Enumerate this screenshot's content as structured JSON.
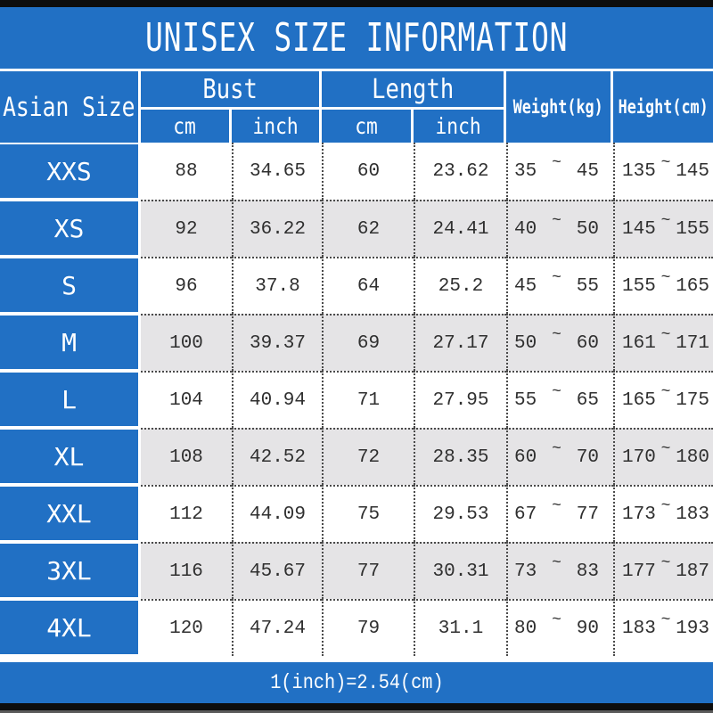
{
  "title": "UNISEX SIZE INFORMATION",
  "header": {
    "size_column": "Asian Size",
    "bust_group": "Bust",
    "length_group": "Length",
    "bust_units": [
      "cm",
      "inch"
    ],
    "length_units": [
      "cm",
      "inch"
    ],
    "weight_column": "Weight(kg)",
    "height_column": "Height(cm)"
  },
  "range_separator": "~",
  "footer_note": "1(inch)=2.54(cm)",
  "colors": {
    "table_blue": "#2170C4",
    "row_alt_gray": "#E5E4E6",
    "edge_bar_black": "#0D0D0D",
    "dotted_line": "#4A4A4A",
    "data_text": "#2F2F2F"
  },
  "chart_data": {
    "type": "table",
    "title": "UNISEX SIZE INFORMATION",
    "columns": [
      "Asian Size",
      "Bust cm",
      "Bust inch",
      "Length cm",
      "Length inch",
      "Weight(kg)",
      "Height(cm)"
    ],
    "rows": [
      [
        "XXS",
        "88",
        "34.65",
        "60",
        "23.62",
        [
          "35",
          "45"
        ],
        [
          "135",
          "145"
        ]
      ],
      [
        "XS",
        "92",
        "36.22",
        "62",
        "24.41",
        [
          "40",
          "50"
        ],
        [
          "145",
          "155"
        ]
      ],
      [
        "S",
        "96",
        "37.8",
        "64",
        "25.2",
        [
          "45",
          "55"
        ],
        [
          "155",
          "165"
        ]
      ],
      [
        "M",
        "100",
        "39.37",
        "69",
        "27.17",
        [
          "50",
          "60"
        ],
        [
          "161",
          "171"
        ]
      ],
      [
        "L",
        "104",
        "40.94",
        "71",
        "27.95",
        [
          "55",
          "65"
        ],
        [
          "165",
          "175"
        ]
      ],
      [
        "XL",
        "108",
        "42.52",
        "72",
        "28.35",
        [
          "60",
          "70"
        ],
        [
          "170",
          "180"
        ]
      ],
      [
        "XXL",
        "112",
        "44.09",
        "75",
        "29.53",
        [
          "67",
          "77"
        ],
        [
          "173",
          "183"
        ]
      ],
      [
        "3XL",
        "116",
        "45.67",
        "77",
        "30.31",
        [
          "73",
          "83"
        ],
        [
          "177",
          "187"
        ]
      ],
      [
        "4XL",
        "120",
        "47.24",
        "79",
        "31.1",
        [
          "80",
          "90"
        ],
        [
          "183",
          "193"
        ]
      ]
    ],
    "note": "1(inch)=2.54(cm)"
  }
}
